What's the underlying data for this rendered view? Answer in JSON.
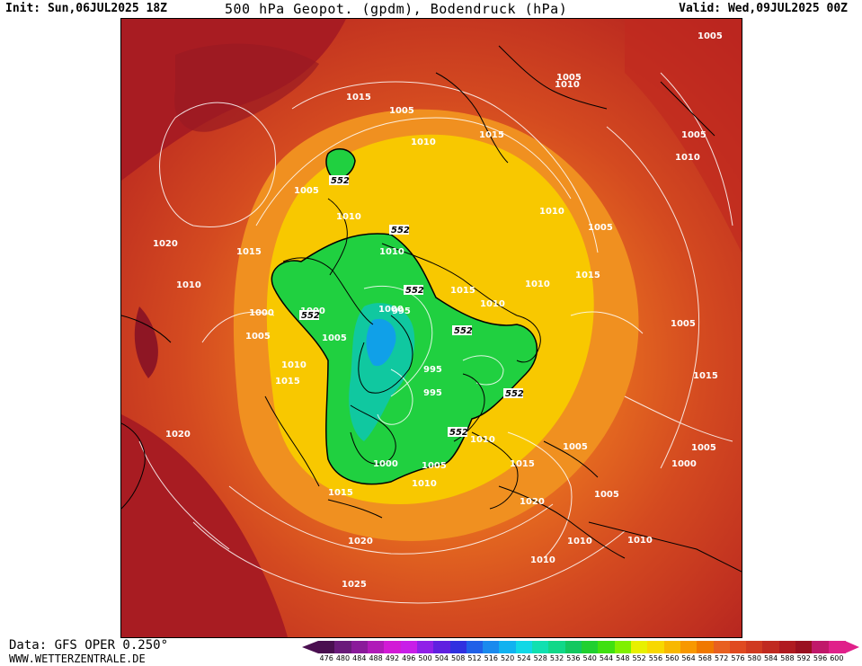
{
  "header": {
    "init": "Init: Sun,06JUL2025 18Z",
    "title": "500 hPa Geopot. (gpdm), Bodendruck (hPa)",
    "valid": "Valid: Wed,09JUL2025 00Z"
  },
  "footer": {
    "data": "Data: GFS OPER 0.250°",
    "site": "WWW.WETTERZENTRALE.DE"
  },
  "colorbar": {
    "ticks": [
      "476",
      "480",
      "484",
      "488",
      "492",
      "496",
      "500",
      "504",
      "508",
      "512",
      "516",
      "520",
      "524",
      "528",
      "532",
      "536",
      "540",
      "544",
      "548",
      "552",
      "556",
      "560",
      "564",
      "568",
      "572",
      "576",
      "580",
      "584",
      "588",
      "592",
      "596",
      "600"
    ],
    "colors": [
      "#4a0f50",
      "#6a1a7a",
      "#8a1a9a",
      "#b01ab8",
      "#d21ad6",
      "#c81ee8",
      "#9020e8",
      "#6020e0",
      "#3030e0",
      "#2060e8",
      "#1a8aee",
      "#10b2f0",
      "#10d8e6",
      "#10e0b0",
      "#10d888",
      "#12c860",
      "#20d030",
      "#40e010",
      "#80f000",
      "#e8f000",
      "#f8d800",
      "#f8b800",
      "#f89800",
      "#f07800",
      "#e86020",
      "#e04a20",
      "#d03a20",
      "#c02a20",
      "#b01a20",
      "#9a1020",
      "#c0186a",
      "#e0208a"
    ]
  },
  "map": {
    "pressure_labels": [
      {
        "text": "1005"
      },
      {
        "text": "1010"
      },
      {
        "text": "1015"
      },
      {
        "text": "1005"
      },
      {
        "text": "1010"
      },
      {
        "text": "1015"
      },
      {
        "text": "1005"
      },
      {
        "text": "1010"
      },
      {
        "text": "1010"
      },
      {
        "text": "1005"
      },
      {
        "text": "1020"
      },
      {
        "text": "1015"
      },
      {
        "text": "1010"
      },
      {
        "text": "1010"
      },
      {
        "text": "1005"
      },
      {
        "text": "1000"
      },
      {
        "text": "1005"
      },
      {
        "text": "1010"
      },
      {
        "text": "1015"
      },
      {
        "text": "1005"
      },
      {
        "text": "1015"
      },
      {
        "text": "1020"
      },
      {
        "text": "1010"
      },
      {
        "text": "1015"
      },
      {
        "text": "1010"
      },
      {
        "text": "1000"
      },
      {
        "text": "1005"
      },
      {
        "text": "1010"
      },
      {
        "text": "1015"
      },
      {
        "text": "1020"
      },
      {
        "text": "1025"
      },
      {
        "text": "1010"
      },
      {
        "text": "1005"
      },
      {
        "text": "1005"
      },
      {
        "text": "1005"
      },
      {
        "text": "1000"
      },
      {
        "text": "1000"
      },
      {
        "text": "995"
      },
      {
        "text": "995"
      },
      {
        "text": "995"
      },
      {
        "text": "1000"
      },
      {
        "text": "1005"
      },
      {
        "text": "1010"
      },
      {
        "text": "1010"
      },
      {
        "text": "1015"
      },
      {
        "text": "1020"
      },
      {
        "text": "1010"
      },
      {
        "text": "1010"
      },
      {
        "text": "1015"
      },
      {
        "text": "1005"
      }
    ],
    "geopotential_labels": [
      {
        "text": "552"
      },
      {
        "text": "552"
      },
      {
        "text": "552"
      },
      {
        "text": "552"
      },
      {
        "text": "552"
      },
      {
        "text": "552"
      },
      {
        "text": "552"
      }
    ]
  }
}
